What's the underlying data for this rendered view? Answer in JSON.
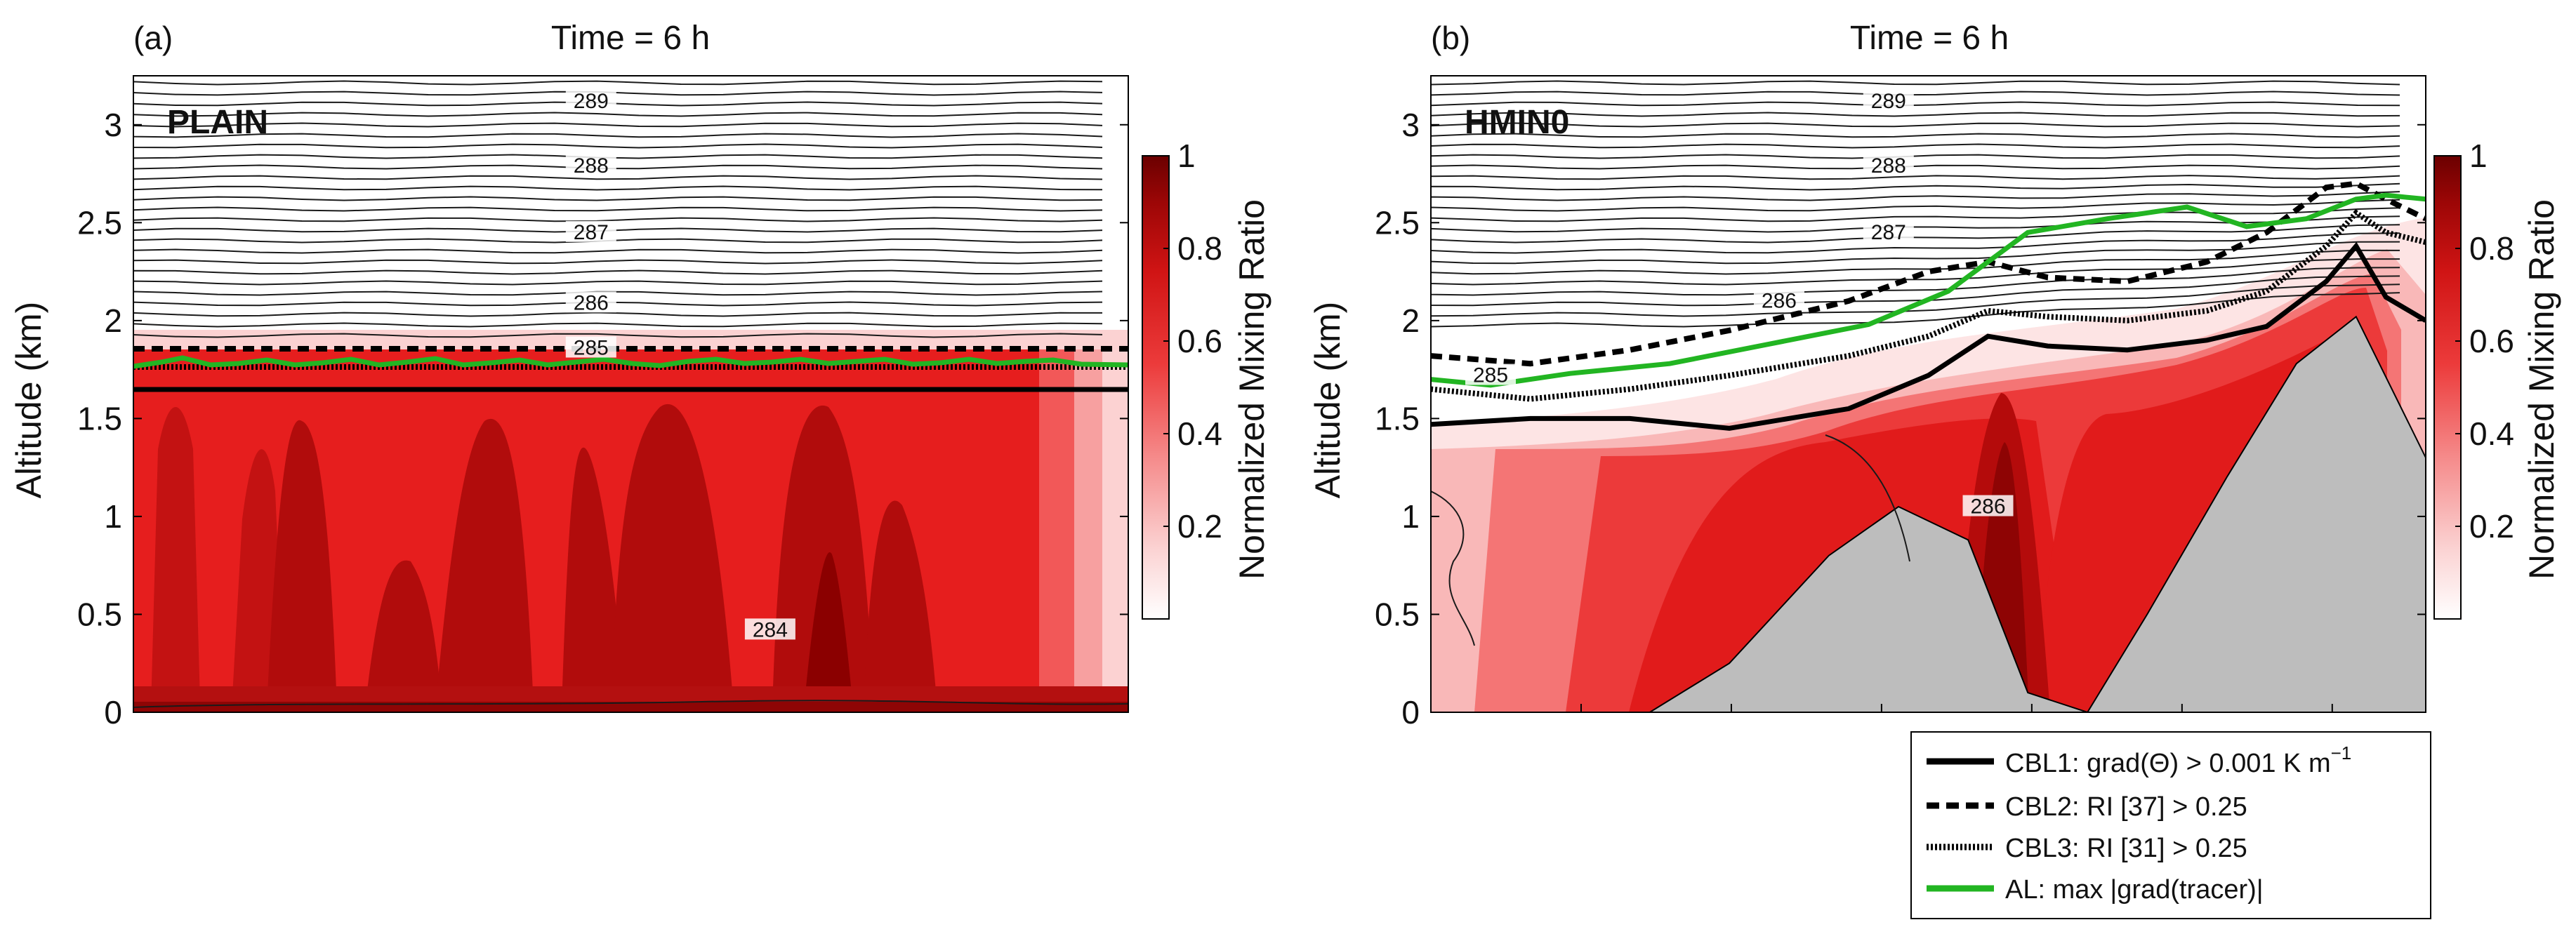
{
  "chart_data": [
    {
      "type": "contour",
      "panel_label": "(a)",
      "title": "Time = 6 h",
      "case_label": "PLAIN",
      "ylabel": "Altitude (km)",
      "xlabel": "",
      "ylim": [
        0,
        3.25
      ],
      "yticks": [
        0,
        0.5,
        1,
        1.5,
        2,
        2.5,
        3
      ],
      "ytick_labels": [
        "0",
        "0.5",
        "1",
        "1.5",
        "2",
        "2.5",
        "3"
      ],
      "colorbar": {
        "label": "Normalized Mixing Ratio",
        "range": [
          0,
          1
        ],
        "ticks": [
          0.2,
          0.4,
          0.6,
          0.8,
          1
        ],
        "tick_labels": [
          "0.2",
          "0.4",
          "0.6",
          "0.8",
          "1"
        ]
      },
      "theta_contour_labels": [
        {
          "text": "289",
          "x": 0.46,
          "y": 3.1
        },
        {
          "text": "288",
          "x": 0.46,
          "y": 2.77
        },
        {
          "text": "287",
          "x": 0.46,
          "y": 2.43
        },
        {
          "text": "286",
          "x": 0.46,
          "y": 2.07
        },
        {
          "text": "285",
          "x": 0.46,
          "y": 1.84
        },
        {
          "text": "284",
          "x": 0.64,
          "y": 0.4
        }
      ],
      "cbl1_km": 1.65,
      "cbl2_km": 1.85,
      "cbl3_km": 1.72,
      "al_km": 1.8
    },
    {
      "type": "contour",
      "panel_label": "(b)",
      "title": "Time = 6 h",
      "case_label": "HMIN0",
      "ylabel": "Altitude (km)",
      "xlabel": "",
      "ylim": [
        0,
        3.25
      ],
      "yticks": [
        0,
        0.5,
        1,
        1.5,
        2,
        2.5,
        3
      ],
      "ytick_labels": [
        "0",
        "0.5",
        "1",
        "1.5",
        "2",
        "2.5",
        "3"
      ],
      "colorbar": {
        "label": "Normalized Mixing Ratio",
        "range": [
          0,
          1
        ],
        "ticks": [
          0.2,
          0.4,
          0.6,
          0.8,
          1
        ],
        "tick_labels": [
          "0.2",
          "0.4",
          "0.6",
          "0.8",
          "1"
        ]
      },
      "theta_contour_labels": [
        {
          "text": "289",
          "x": 0.46,
          "y": 3.1
        },
        {
          "text": "288",
          "x": 0.46,
          "y": 2.77
        },
        {
          "text": "287",
          "x": 0.46,
          "y": 2.43
        },
        {
          "text": "286",
          "x": 0.35,
          "y": 2.08
        },
        {
          "text": "285",
          "x": 0.06,
          "y": 1.7
        },
        {
          "text": "286",
          "x": 0.56,
          "y": 1.03
        }
      ],
      "terrain_km": {
        "x": [
          0.22,
          0.3,
          0.4,
          0.47,
          0.54,
          0.6,
          0.66,
          0.72,
          0.8,
          0.87,
          0.93,
          1.0
        ],
        "y": [
          0,
          0.25,
          0.8,
          1.05,
          0.88,
          0.1,
          0.0,
          0.5,
          1.2,
          1.78,
          2.02,
          1.3
        ]
      },
      "series": [
        {
          "name": "CBL1",
          "x": [
            0,
            0.1,
            0.2,
            0.3,
            0.42,
            0.5,
            0.56,
            0.62,
            0.7,
            0.78,
            0.84,
            0.9,
            0.93,
            0.96,
            1.0
          ],
          "y": [
            1.47,
            1.5,
            1.5,
            1.45,
            1.55,
            1.72,
            1.92,
            1.87,
            1.85,
            1.9,
            1.97,
            2.2,
            2.38,
            2.12,
            2.0
          ]
        },
        {
          "name": "CBL2",
          "x": [
            0,
            0.1,
            0.2,
            0.3,
            0.42,
            0.5,
            0.56,
            0.62,
            0.7,
            0.78,
            0.84,
            0.9,
            0.93,
            0.96,
            1.0
          ],
          "y": [
            1.82,
            1.78,
            1.85,
            1.95,
            2.1,
            2.25,
            2.3,
            2.22,
            2.2,
            2.3,
            2.45,
            2.68,
            2.7,
            2.62,
            2.52
          ]
        },
        {
          "name": "CBL3",
          "x": [
            0,
            0.1,
            0.2,
            0.3,
            0.42,
            0.5,
            0.56,
            0.62,
            0.7,
            0.78,
            0.84,
            0.9,
            0.93,
            0.96,
            1.0
          ],
          "y": [
            1.65,
            1.6,
            1.65,
            1.72,
            1.82,
            1.92,
            2.05,
            2.02,
            2.0,
            2.05,
            2.15,
            2.38,
            2.55,
            2.45,
            2.4
          ]
        },
        {
          "name": "AL",
          "x": [
            0,
            0.06,
            0.14,
            0.24,
            0.34,
            0.44,
            0.52,
            0.6,
            0.68,
            0.76,
            0.82,
            0.88,
            0.93,
            0.96,
            1.0
          ],
          "y": [
            1.7,
            1.67,
            1.73,
            1.78,
            1.88,
            1.98,
            2.15,
            2.45,
            2.52,
            2.58,
            2.48,
            2.52,
            2.62,
            2.64,
            2.62
          ]
        }
      ]
    }
  ],
  "legend": {
    "placement": "bottom-right",
    "entries": [
      {
        "series": "CBL1",
        "style": "solid",
        "color": "#000000",
        "pre": "CBL1: grad(Θ) > 0.001 K m",
        "sup": "−1",
        "post": ""
      },
      {
        "series": "CBL2",
        "style": "dashed",
        "color": "#000000",
        "pre": "CBL2: RI",
        "sup": "",
        "post": "[37] > 0.25"
      },
      {
        "series": "CBL3",
        "style": "dotted",
        "color": "#000000",
        "pre": "CBL3: RI",
        "sup": "",
        "post": "[31] > 0.25"
      },
      {
        "series": "AL",
        "style": "solid",
        "color": "#22b522",
        "pre": "AL: max",
        "sup": "",
        "post": "grad(tracer)"
      }
    ]
  },
  "colors": {
    "terrain": "#bdbdbd",
    "al_line": "#22b522",
    "colormap": [
      "#ffffff",
      "#fde0e0",
      "#f9b4b4",
      "#f47f7f",
      "#ef4444",
      "#e31a1c",
      "#c41010",
      "#a50a0a",
      "#7a0000"
    ]
  }
}
